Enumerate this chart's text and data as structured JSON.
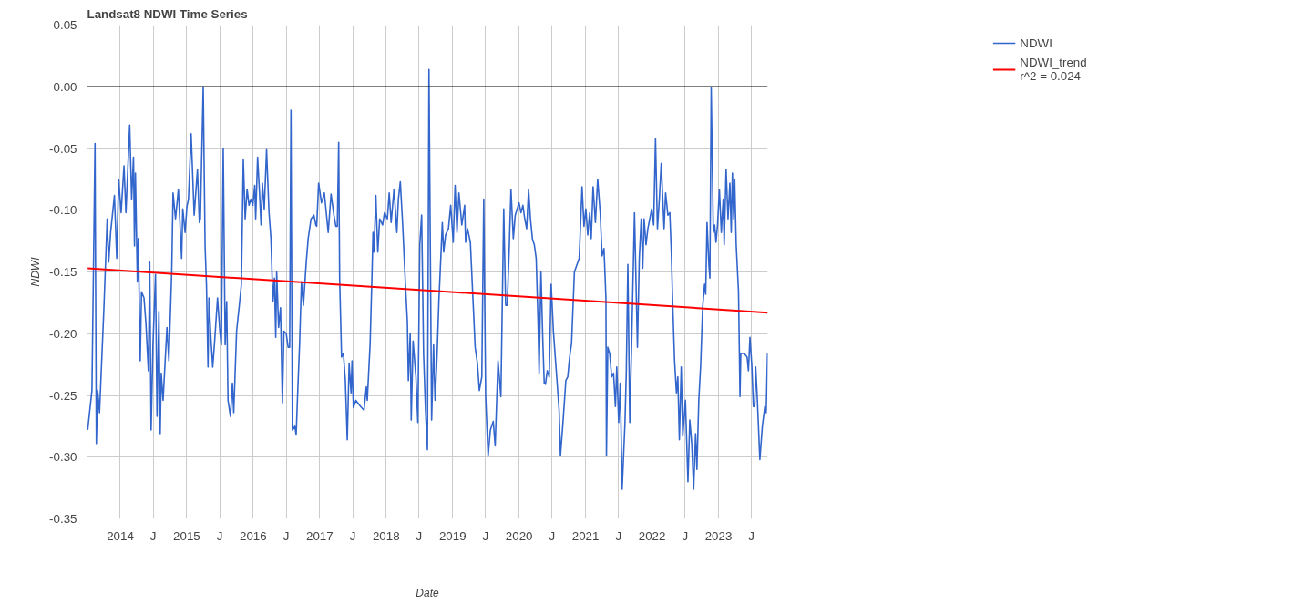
{
  "chart_data": {
    "type": "line",
    "title": "Landsat8 NDWI Time Series",
    "xlabel": "Date",
    "ylabel": "NDWI",
    "xlim": [
      2013.5,
      2023.74
    ],
    "ylim": [
      -0.35,
      0.05
    ],
    "xticks": [
      {
        "value": 2014,
        "label": "2014"
      },
      {
        "value": 2014.496,
        "label": "J"
      },
      {
        "value": 2015,
        "label": "2015"
      },
      {
        "value": 2015.496,
        "label": "J"
      },
      {
        "value": 2016,
        "label": "2016"
      },
      {
        "value": 2016.496,
        "label": "J"
      },
      {
        "value": 2017,
        "label": "2017"
      },
      {
        "value": 2017.496,
        "label": "J"
      },
      {
        "value": 2018,
        "label": "2018"
      },
      {
        "value": 2018.496,
        "label": "J"
      },
      {
        "value": 2019,
        "label": "2019"
      },
      {
        "value": 2019.496,
        "label": "J"
      },
      {
        "value": 2020,
        "label": "2020"
      },
      {
        "value": 2020.496,
        "label": "J"
      },
      {
        "value": 2021,
        "label": "2021"
      },
      {
        "value": 2021.496,
        "label": "J"
      },
      {
        "value": 2022,
        "label": "2022"
      },
      {
        "value": 2022.496,
        "label": "J"
      },
      {
        "value": 2023,
        "label": "2023"
      },
      {
        "value": 2023.496,
        "label": "J"
      }
    ],
    "yticks": [
      {
        "value": 0.05,
        "label": "0.05"
      },
      {
        "value": 0,
        "label": "0.00"
      },
      {
        "value": -0.05,
        "label": "-0.05"
      },
      {
        "value": -0.1,
        "label": "-0.10"
      },
      {
        "value": -0.15,
        "label": "-0.15"
      },
      {
        "value": -0.2,
        "label": "-0.20"
      },
      {
        "value": -0.25,
        "label": "-0.25"
      },
      {
        "value": -0.3,
        "label": "-0.30"
      },
      {
        "value": -0.35,
        "label": "-0.35"
      }
    ],
    "grid": true,
    "legend": "top right",
    "line_style": "solid",
    "ref_lines": [
      {
        "axis": "y",
        "value": 0,
        "color": "#000000"
      }
    ],
    "annotations": [
      "r^2 = 0.024"
    ],
    "series": [
      {
        "name": "NDWI",
        "color": "#3366cc",
        "x": [
          2013.51,
          2013.574,
          2013.62,
          2013.64,
          2013.66,
          2013.688,
          2013.754,
          2013.803,
          2013.826,
          2013.855,
          2013.912,
          2013.947,
          2013.976,
          2014.013,
          2014.056,
          2014.085,
          2014.113,
          2014.142,
          2014.171,
          2014.199,
          2014.214,
          2014.228,
          2014.257,
          2014.271,
          2014.3,
          2014.32,
          2014.357,
          2014.386,
          2014.423,
          2014.443,
          2014.464,
          2014.492,
          2014.53,
          2014.553,
          2014.581,
          2014.601,
          2014.616,
          2014.644,
          2014.702,
          2014.731,
          2014.774,
          2014.794,
          2014.831,
          2014.874,
          2014.923,
          2014.94,
          2014.975,
          2015.003,
          2015.026,
          2015.066,
          2015.112,
          2015.161,
          2015.19,
          2015.205,
          2015.248,
          2015.276,
          2015.297,
          2015.32,
          2015.334,
          2015.363,
          2015.391,
          2015.42,
          2015.463,
          2015.498,
          2015.521,
          2015.549,
          2015.578,
          2015.601,
          2015.621,
          2015.658,
          2015.687,
          2015.707,
          2015.75,
          2015.793,
          2015.822,
          2015.851,
          2015.879,
          2015.908,
          2015.937,
          2015.966,
          2015.994,
          2016.023,
          2016.037,
          2016.066,
          2016.095,
          2016.118,
          2016.138,
          2016.166,
          2016.201,
          2016.238,
          2016.267,
          2016.296,
          2016.319,
          2016.339,
          2016.353,
          2016.382,
          2016.411,
          2016.439,
          2016.462,
          2016.497,
          2016.525,
          2016.548,
          2016.568,
          2016.589,
          2016.626,
          2016.646,
          2016.669,
          2016.698,
          2016.726,
          2016.755,
          2016.798,
          2016.827,
          2016.87,
          2016.913,
          2016.942,
          2016.955,
          2016.984,
          2017.027,
          2017.07,
          2017.128,
          2017.171,
          2017.214,
          2017.243,
          2017.265,
          2017.286,
          2017.3,
          2017.329,
          2017.357,
          2017.386,
          2017.415,
          2017.443,
          2017.472,
          2017.487,
          2017.507,
          2017.544,
          2017.616,
          2017.667,
          2017.702,
          2017.716,
          2017.759,
          2017.788,
          2017.802,
          2017.817,
          2017.845,
          2017.874,
          2017.903,
          2017.946,
          2017.975,
          2018.018,
          2018.046,
          2018.075,
          2018.118,
          2018.161,
          2018.184,
          2018.213,
          2018.247,
          2018.29,
          2018.319,
          2018.334,
          2018.362,
          2018.377,
          2018.405,
          2018.448,
          2018.477,
          2018.506,
          2018.534,
          2018.563,
          2018.592,
          2018.621,
          2018.644,
          2018.684,
          2018.713,
          2018.736,
          2018.765,
          2018.793,
          2018.822,
          2018.845,
          2018.865,
          2018.894,
          2018.937,
          2018.971,
          2019.009,
          2019.037,
          2019.066,
          2019.095,
          2019.138,
          2019.181,
          2019.195,
          2019.224,
          2019.267,
          2019.31,
          2019.339,
          2019.373,
          2019.402,
          2019.439,
          2019.468,
          2019.497,
          2019.534,
          2019.568,
          2019.611,
          2019.64,
          2019.683,
          2019.726,
          2019.769,
          2019.798,
          2019.821,
          2019.85,
          2019.878,
          2019.913,
          2019.942,
          2019.97,
          2019.999,
          2020.028,
          2020.057,
          2020.085,
          2020.114,
          2020.143,
          2020.171,
          2020.2,
          2020.229,
          2020.257,
          2020.286,
          2020.301,
          2020.329,
          2020.358,
          2020.378,
          2020.396,
          2020.424,
          2020.453,
          2020.482,
          2020.516,
          2020.559,
          2020.602,
          2020.622,
          2020.66,
          2020.703,
          2020.732,
          2020.76,
          2020.789,
          2020.832,
          2020.904,
          2020.947,
          2020.976,
          2021.004,
          2021.033,
          2021.062,
          2021.085,
          2021.113,
          2021.148,
          2021.182,
          2021.22,
          2021.248,
          2021.277,
          2021.306,
          2021.314,
          2021.334,
          2021.363,
          2021.392,
          2021.421,
          2021.449,
          2021.469,
          2021.498,
          2021.521,
          2021.55,
          2021.593,
          2021.613,
          2021.636,
          2021.665,
          2021.693,
          2021.736,
          2021.78,
          2021.808,
          2021.837,
          2021.86,
          2021.88,
          2021.909,
          2021.937,
          2021.966,
          2021.995,
          2022.024,
          2022.052,
          2022.081,
          2022.11,
          2022.138,
          2022.181,
          2022.204,
          2022.238,
          2022.267,
          2022.29,
          2022.31,
          2022.339,
          2022.367,
          2022.388,
          2022.411,
          2022.439,
          2022.462,
          2022.502,
          2022.54,
          2022.568,
          2022.597,
          2022.626,
          2022.655,
          2022.675,
          2022.703,
          2022.732,
          2022.761,
          2022.79,
          2022.807,
          2022.827,
          2022.856,
          2022.87,
          2022.89,
          2022.922,
          2022.942,
          2022.962,
          2022.985,
          2023.013,
          2023.042,
          2023.071,
          2023.085,
          2023.114,
          2023.143,
          2023.171,
          2023.191,
          2023.209,
          2023.229,
          2023.243,
          2023.266,
          2023.301,
          2023.323,
          2023.335,
          2023.387,
          2023.43,
          2023.45,
          2023.473,
          2023.502,
          2023.524,
          2023.545,
          2023.559,
          2023.582,
          2023.622,
          2023.659,
          2023.697,
          2023.717,
          2023.737
        ],
        "values": [
          -0.278,
          -0.246,
          -0.046,
          -0.289,
          -0.246,
          -0.264,
          -0.179,
          -0.107,
          -0.142,
          -0.118,
          -0.088,
          -0.139,
          -0.075,
          -0.102,
          -0.064,
          -0.102,
          -0.067,
          -0.031,
          -0.091,
          -0.057,
          -0.129,
          -0.07,
          -0.158,
          -0.123,
          -0.222,
          -0.166,
          -0.171,
          -0.192,
          -0.23,
          -0.142,
          -0.278,
          -0.209,
          -0.152,
          -0.267,
          -0.182,
          -0.281,
          -0.232,
          -0.254,
          -0.195,
          -0.222,
          -0.15,
          -0.086,
          -0.107,
          -0.083,
          -0.139,
          -0.099,
          -0.118,
          -0.097,
          -0.091,
          -0.038,
          -0.104,
          -0.067,
          -0.11,
          -0.107,
          0.0,
          -0.129,
          -0.161,
          -0.227,
          -0.171,
          -0.203,
          -0.227,
          -0.206,
          -0.171,
          -0.198,
          -0.209,
          -0.05,
          -0.209,
          -0.174,
          -0.254,
          -0.267,
          -0.24,
          -0.264,
          -0.198,
          -0.176,
          -0.16,
          -0.059,
          -0.107,
          -0.083,
          -0.096,
          -0.091,
          -0.096,
          -0.08,
          -0.107,
          -0.057,
          -0.086,
          -0.112,
          -0.078,
          -0.099,
          -0.051,
          -0.102,
          -0.123,
          -0.174,
          -0.155,
          -0.203,
          -0.15,
          -0.195,
          -0.179,
          -0.256,
          -0.198,
          -0.2,
          -0.211,
          -0.211,
          -0.019,
          -0.278,
          -0.275,
          -0.282,
          -0.248,
          -0.208,
          -0.158,
          -0.177,
          -0.142,
          -0.123,
          -0.107,
          -0.104,
          -0.112,
          -0.113,
          -0.078,
          -0.094,
          -0.086,
          -0.118,
          -0.087,
          -0.104,
          -0.113,
          -0.113,
          -0.045,
          -0.155,
          -0.219,
          -0.216,
          -0.238,
          -0.286,
          -0.224,
          -0.248,
          -0.222,
          -0.26,
          -0.254,
          -0.259,
          -0.262,
          -0.243,
          -0.254,
          -0.208,
          -0.15,
          -0.118,
          -0.134,
          -0.088,
          -0.134,
          -0.107,
          -0.112,
          -0.102,
          -0.107,
          -0.086,
          -0.11,
          -0.083,
          -0.118,
          -0.091,
          -0.077,
          -0.11,
          -0.16,
          -0.19,
          -0.238,
          -0.2,
          -0.27,
          -0.206,
          -0.235,
          -0.272,
          -0.128,
          -0.104,
          -0.216,
          -0.262,
          -0.294,
          0.014,
          -0.27,
          -0.209,
          -0.254,
          -0.219,
          -0.174,
          -0.139,
          -0.11,
          -0.134,
          -0.12,
          -0.115,
          -0.096,
          -0.126,
          -0.08,
          -0.118,
          -0.086,
          -0.112,
          -0.096,
          -0.126,
          -0.115,
          -0.126,
          -0.177,
          -0.211,
          -0.224,
          -0.246,
          -0.235,
          -0.091,
          -0.251,
          -0.299,
          -0.278,
          -0.271,
          -0.291,
          -0.222,
          -0.251,
          -0.099,
          -0.177,
          -0.177,
          -0.134,
          -0.083,
          -0.123,
          -0.104,
          -0.099,
          -0.094,
          -0.102,
          -0.096,
          -0.107,
          -0.115,
          -0.083,
          -0.107,
          -0.123,
          -0.128,
          -0.139,
          -0.192,
          -0.232,
          -0.15,
          -0.208,
          -0.24,
          -0.241,
          -0.23,
          -0.235,
          -0.16,
          -0.198,
          -0.23,
          -0.262,
          -0.299,
          -0.272,
          -0.238,
          -0.235,
          -0.219,
          -0.208,
          -0.15,
          -0.139,
          -0.081,
          -0.113,
          -0.099,
          -0.12,
          -0.102,
          -0.123,
          -0.081,
          -0.11,
          -0.075,
          -0.102,
          -0.137,
          -0.131,
          -0.171,
          -0.299,
          -0.211,
          -0.216,
          -0.235,
          -0.232,
          -0.259,
          -0.227,
          -0.272,
          -0.24,
          -0.326,
          -0.272,
          -0.23,
          -0.144,
          -0.272,
          -0.208,
          -0.102,
          -0.211,
          -0.139,
          -0.107,
          -0.147,
          -0.107,
          -0.128,
          -0.115,
          -0.107,
          -0.099,
          -0.112,
          -0.042,
          -0.115,
          -0.091,
          -0.062,
          -0.115,
          -0.086,
          -0.104,
          -0.102,
          -0.134,
          -0.174,
          -0.222,
          -0.248,
          -0.235,
          -0.286,
          -0.227,
          -0.283,
          -0.254,
          -0.32,
          -0.27,
          -0.289,
          -0.326,
          -0.281,
          -0.31,
          -0.254,
          -0.225,
          -0.179,
          -0.16,
          -0.168,
          -0.11,
          -0.145,
          -0.155,
          -0.001,
          -0.118,
          -0.112,
          -0.126,
          -0.112,
          -0.083,
          -0.118,
          -0.091,
          -0.128,
          -0.067,
          -0.107,
          -0.078,
          -0.118,
          -0.07,
          -0.107,
          -0.075,
          -0.128,
          -0.166,
          -0.251,
          -0.216,
          -0.216,
          -0.219,
          -0.23,
          -0.203,
          -0.227,
          -0.259,
          -0.259,
          -0.227,
          -0.251,
          -0.302,
          -0.275,
          -0.259,
          -0.264,
          -0.216
        ]
      },
      {
        "name": "NDWI_trend",
        "color": "#ff0000",
        "type": "line",
        "x": [
          2013.51,
          2023.74
        ],
        "values": [
          -0.147,
          -0.183
        ]
      }
    ]
  }
}
